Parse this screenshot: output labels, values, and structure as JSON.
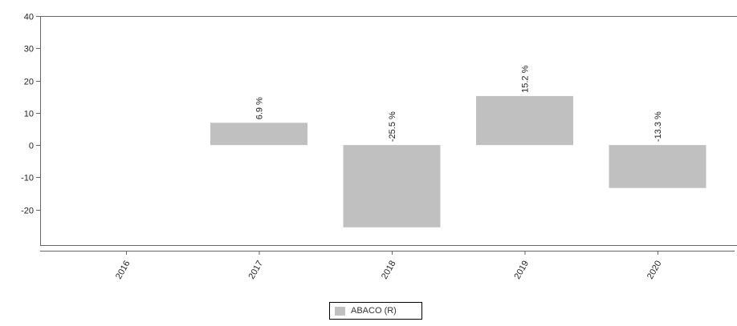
{
  "chart_data": {
    "type": "bar",
    "categories": [
      "2016",
      "2017",
      "2018",
      "2019",
      "2020"
    ],
    "series": [
      {
        "name": "ABACO (R)",
        "values": [
          null,
          6.9,
          -25.5,
          15.2,
          -13.3
        ],
        "labels": [
          "",
          "6.9 %",
          "-25.5 %",
          "15.2 %",
          "-13.3 %"
        ],
        "color": "#c0c0c0"
      }
    ],
    "title": "",
    "xlabel": "",
    "ylabel": "",
    "ylim": [
      -31,
      40
    ],
    "yticks": [
      40,
      30,
      20,
      10,
      0,
      -10,
      -20
    ],
    "grid": false,
    "legend": "bottom"
  }
}
